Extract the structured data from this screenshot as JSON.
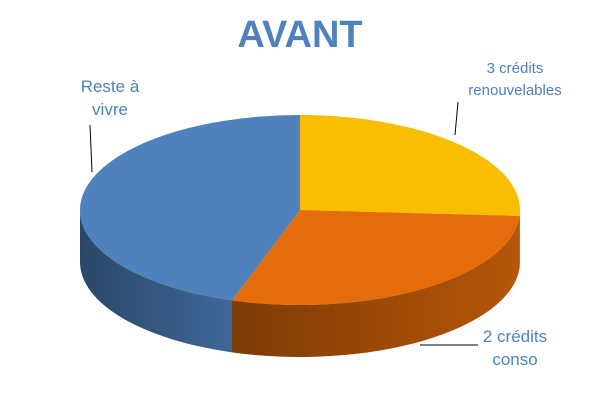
{
  "chart_data": {
    "type": "pie",
    "title": "AVANT",
    "categories": [
      "3 crédits renouvelables",
      "2 crédits conso",
      "Reste à vivre"
    ],
    "values": [
      26,
      29,
      45
    ],
    "colors": [
      "#f9be00",
      "#e46c0a",
      "#4f81bd"
    ]
  }
}
